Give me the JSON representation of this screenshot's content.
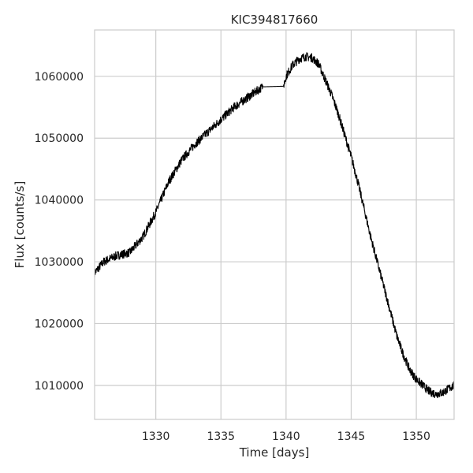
{
  "chart_data": {
    "type": "line",
    "title": "KIC394817660",
    "xlabel": "Time [days]",
    "ylabel": "Flux [counts/s]",
    "xlim": [
      1325.3,
      1352.9
    ],
    "ylim": [
      1004500,
      1067500
    ],
    "xticks": [
      1330,
      1335,
      1340,
      1345,
      1350
    ],
    "yticks": [
      1010000,
      1020000,
      1030000,
      1040000,
      1050000,
      1060000
    ],
    "xtick_labels": [
      "1330",
      "1335",
      "1340",
      "1345",
      "1350"
    ],
    "ytick_labels": [
      "1010000",
      "1020000",
      "1030000",
      "1040000",
      "1050000",
      "1060000"
    ],
    "grid": true,
    "line_color": "#000000",
    "gap": [
      1338.2,
      1339.8
    ],
    "series": [
      {
        "x": [
          1325.3,
          1326.0,
          1327.0,
          1328.0,
          1329.0,
          1330.0,
          1330.5,
          1331.0,
          1332.0,
          1333.0,
          1334.0,
          1335.0,
          1336.0,
          1337.0,
          1338.0,
          1338.2,
          1339.8,
          1340.0,
          1340.5,
          1341.0,
          1341.5,
          1342.0,
          1342.5,
          1343.0,
          1343.5,
          1344.0,
          1344.5,
          1345.0,
          1345.5,
          1346.0,
          1346.5,
          1347.0,
          1347.5,
          1348.0,
          1348.5,
          1349.0,
          1349.5,
          1350.0,
          1350.5,
          1351.0,
          1351.5,
          1352.0,
          1352.5,
          1352.9
        ],
        "y": [
          1028200,
          1030000,
          1031000,
          1031500,
          1034000,
          1038000,
          1040500,
          1043000,
          1046500,
          1049000,
          1051000,
          1053000,
          1055000,
          1056500,
          1058000,
          1058300,
          1058400,
          1060000,
          1061800,
          1062800,
          1063200,
          1063000,
          1062000,
          1059500,
          1057000,
          1054000,
          1050500,
          1047000,
          1043000,
          1038500,
          1034000,
          1030000,
          1026000,
          1022000,
          1018000,
          1015000,
          1012500,
          1011000,
          1010000,
          1009000,
          1008600,
          1008800,
          1009500,
          1010000
        ]
      }
    ]
  }
}
